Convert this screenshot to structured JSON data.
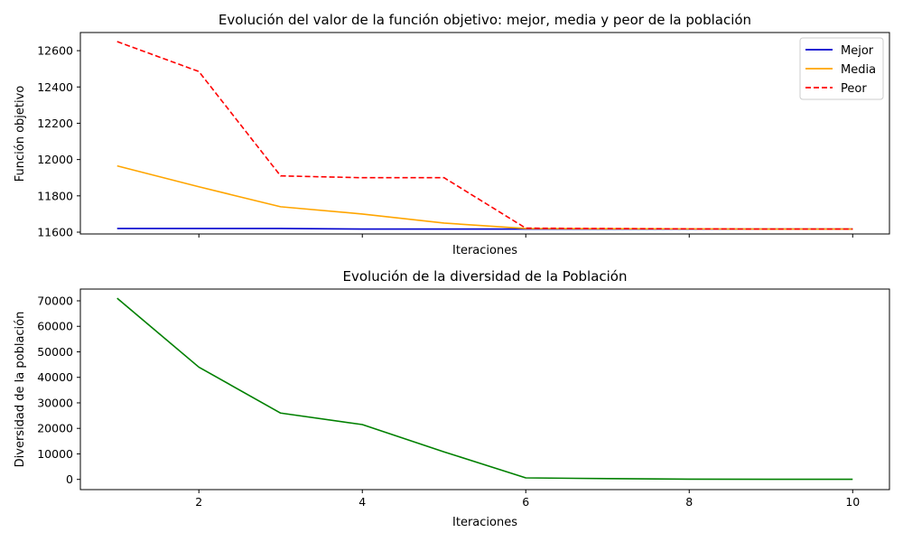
{
  "chart_data": [
    {
      "type": "line",
      "title": "Evolución del valor de la función objetivo: mejor, media y peor de la población",
      "xlabel": "Iteraciones",
      "ylabel": "Función objetivo",
      "x": [
        1,
        2,
        3,
        4,
        5,
        6,
        7,
        8,
        9,
        10
      ],
      "xlim": [
        0.55,
        10.45
      ],
      "ylim": [
        11590,
        12700
      ],
      "xticks": [
        2,
        4,
        6,
        8,
        10
      ],
      "xtick_labels_visible": false,
      "yticks": [
        11600,
        11800,
        12000,
        12200,
        12400,
        12600
      ],
      "ytick_labels": [
        "11600",
        "11800",
        "12000",
        "12200",
        "12400",
        "12600"
      ],
      "legend": "top-right",
      "grid": false,
      "series": [
        {
          "name": "Mejor",
          "color": "#0000cd",
          "style": "solid",
          "values": [
            11620,
            11620,
            11620,
            11617,
            11617,
            11617,
            11617,
            11617,
            11617,
            11617
          ]
        },
        {
          "name": "Media",
          "color": "#ffa500",
          "style": "solid",
          "values": [
            11965,
            11850,
            11740,
            11700,
            11650,
            11620,
            11619,
            11618,
            11617,
            11617
          ]
        },
        {
          "name": "Peor",
          "color": "#ff0000",
          "style": "dashed",
          "values": [
            12650,
            12485,
            11910,
            11900,
            11900,
            11622,
            11620,
            11618,
            11617,
            11617
          ]
        }
      ]
    },
    {
      "type": "line",
      "title": "Evolución de la diversidad de la Población",
      "xlabel": "Iteraciones",
      "ylabel": "Diversidad de la población",
      "x": [
        1,
        2,
        3,
        4,
        5,
        6,
        7,
        8,
        9,
        10
      ],
      "xlim": [
        0.55,
        10.45
      ],
      "ylim": [
        -4000,
        74600
      ],
      "xticks": [
        2,
        4,
        6,
        8,
        10
      ],
      "xtick_labels": [
        "2",
        "4",
        "6",
        "8",
        "10"
      ],
      "yticks": [
        0,
        10000,
        20000,
        30000,
        40000,
        50000,
        60000,
        70000
      ],
      "ytick_labels": [
        "0",
        "10000",
        "20000",
        "30000",
        "40000",
        "50000",
        "60000",
        "70000"
      ],
      "grid": false,
      "series": [
        {
          "color": "#008000",
          "style": "solid",
          "values": [
            71000,
            44000,
            26000,
            21500,
            10800,
            600,
            300,
            100,
            60,
            40
          ]
        }
      ]
    }
  ]
}
